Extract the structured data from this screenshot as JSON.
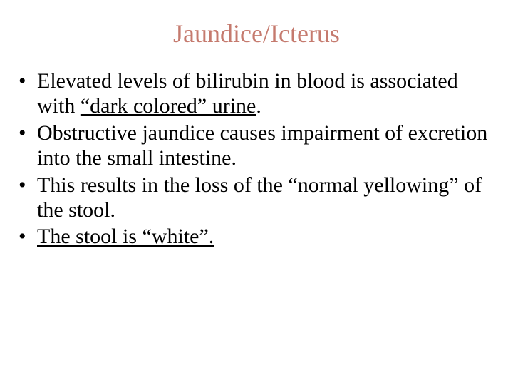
{
  "title": {
    "text": "Jaundice/Icterus",
    "color": "#c57a6e",
    "fontsize": 36
  },
  "body": {
    "color": "#000000",
    "fontsize": 30,
    "line_height": 1.18,
    "bullet_char": "•"
  },
  "bullets": [
    {
      "segments": [
        {
          "text": "Elevated levels of bilirubin in blood is associated with ",
          "underline": false
        },
        {
          "text": "\"dark colored\" urine",
          "underline": true
        },
        {
          "text": ".",
          "underline": false
        }
      ]
    },
    {
      "segments": [
        {
          "text": "Obstructive jaundice causes impairment of excretion into the small intestine.",
          "underline": false
        }
      ]
    },
    {
      "segments": [
        {
          "text": " This results in the loss of the \"normal yellowing\" of the stool.",
          "underline": false
        }
      ]
    },
    {
      "segments": [
        {
          "text": "The stool is \"white\".",
          "underline": true
        }
      ]
    }
  ]
}
